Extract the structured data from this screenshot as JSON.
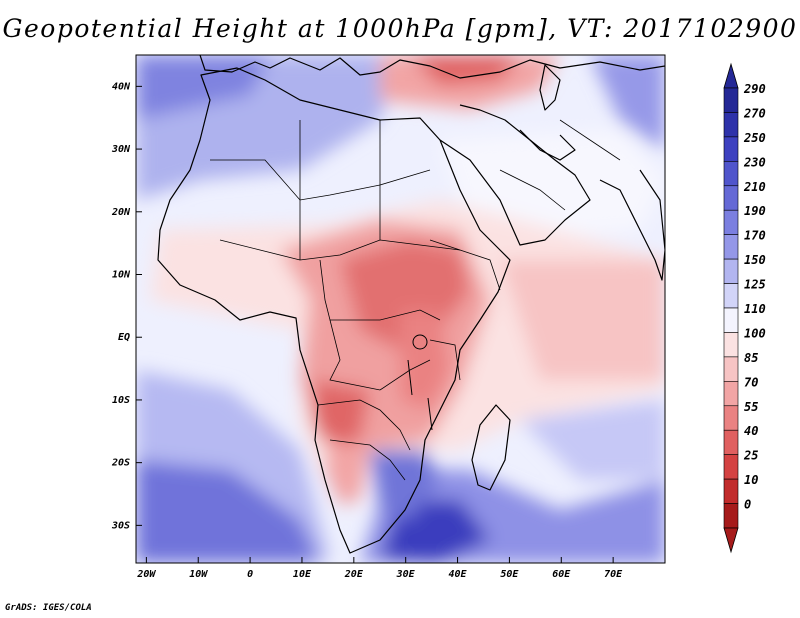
{
  "title": "Geopotential Height at 1000hPa [gpm], VT: 2017102900",
  "credit": "GrADS: IGES/COLA",
  "axes": {
    "lat_labels": [
      "40N",
      "30N",
      "20N",
      "10N",
      "EQ",
      "10S",
      "20S",
      "30S"
    ],
    "lat_values": [
      40,
      30,
      20,
      10,
      0,
      -10,
      -20,
      -30
    ],
    "lon_labels": [
      "20W",
      "10W",
      "0",
      "10E",
      "20E",
      "30E",
      "40E",
      "50E",
      "60E",
      "70E"
    ],
    "lon_values": [
      -20,
      -10,
      0,
      10,
      20,
      30,
      40,
      50,
      60,
      70
    ],
    "lon_range": [
      -22,
      80
    ],
    "lat_range": [
      -36,
      45
    ]
  },
  "colorbar": {
    "levels": [
      "290",
      "270",
      "250",
      "230",
      "210",
      "190",
      "170",
      "150",
      "125",
      "110",
      "100",
      "85",
      "70",
      "55",
      "40",
      "25",
      "10",
      "0"
    ],
    "colors": [
      "#242896",
      "#2e32aa",
      "#3d41c0",
      "#5055cc",
      "#6569d6",
      "#7b7fe0",
      "#9497e8",
      "#b2b5f0",
      "#d2d4f8",
      "#f4f4fe",
      "#fbe2e2",
      "#f7c4c4",
      "#f2a5a5",
      "#ea8282",
      "#e06060",
      "#d44242",
      "#c22c2c",
      "#a61b1b"
    ]
  }
}
